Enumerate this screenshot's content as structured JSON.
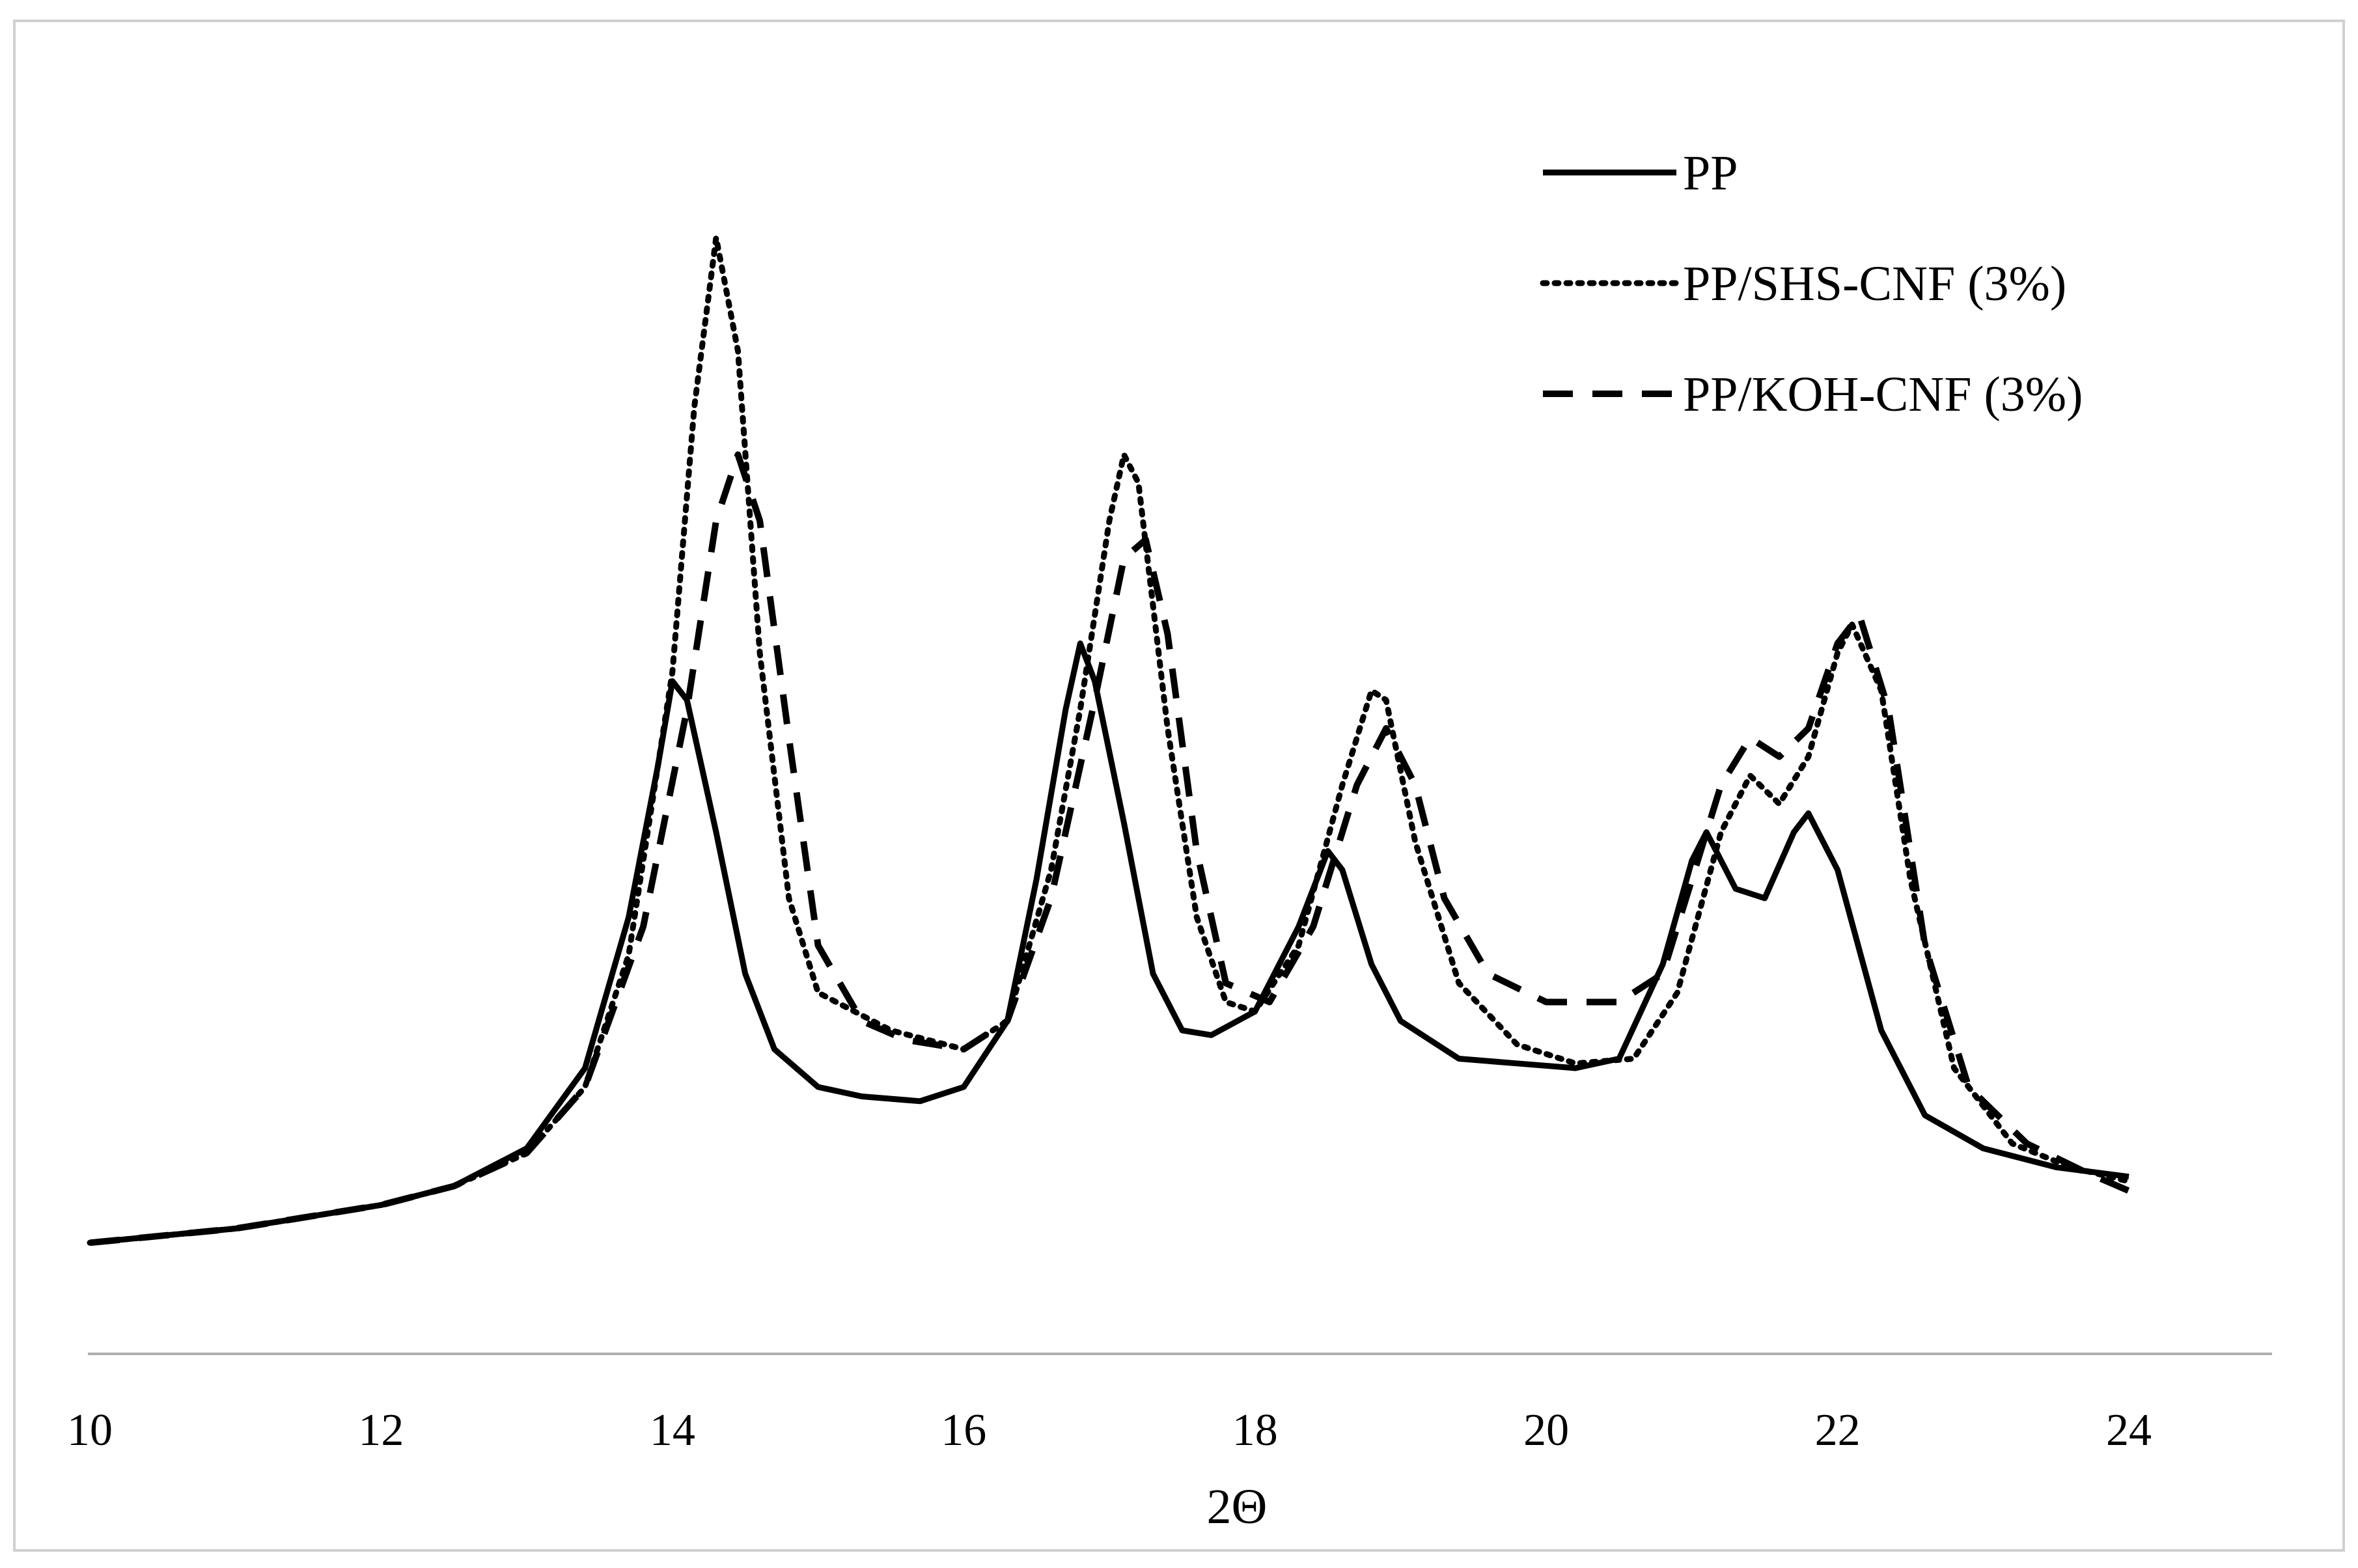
{
  "chart_data": {
    "type": "line",
    "title": "",
    "xlabel": "2Θ",
    "ylabel": "",
    "xlim": [
      10,
      24
    ],
    "ylim": [
      0,
      115
    ],
    "x_ticks": [
      "10",
      "12",
      "14",
      "16",
      "18",
      "20",
      "22",
      "24"
    ],
    "grid": false,
    "legend_position": "top-right",
    "series": [
      {
        "name": "PP",
        "style": "solid",
        "color": "#000000",
        "points": [
          [
            10.0,
            3.5
          ],
          [
            11.0,
            5.0
          ],
          [
            12.0,
            7.5
          ],
          [
            12.5,
            9.5
          ],
          [
            13.0,
            13.5
          ],
          [
            13.4,
            22
          ],
          [
            13.7,
            38
          ],
          [
            13.9,
            54
          ],
          [
            14.0,
            63
          ],
          [
            14.1,
            61
          ],
          [
            14.3,
            47
          ],
          [
            14.5,
            32
          ],
          [
            14.7,
            24
          ],
          [
            15.0,
            20
          ],
          [
            15.3,
            19
          ],
          [
            15.7,
            18.5
          ],
          [
            16.0,
            20
          ],
          [
            16.3,
            27
          ],
          [
            16.5,
            42
          ],
          [
            16.7,
            60
          ],
          [
            16.8,
            67
          ],
          [
            16.9,
            63
          ],
          [
            17.1,
            48
          ],
          [
            17.3,
            32
          ],
          [
            17.5,
            26
          ],
          [
            17.7,
            25.5
          ],
          [
            18.0,
            28
          ],
          [
            18.3,
            37
          ],
          [
            18.5,
            45
          ],
          [
            18.6,
            43
          ],
          [
            18.8,
            33
          ],
          [
            19.0,
            27
          ],
          [
            19.4,
            23
          ],
          [
            19.8,
            22.5
          ],
          [
            20.2,
            22
          ],
          [
            20.5,
            23
          ],
          [
            20.8,
            33
          ],
          [
            21.0,
            44
          ],
          [
            21.1,
            47
          ],
          [
            21.3,
            41
          ],
          [
            21.5,
            40
          ],
          [
            21.7,
            47
          ],
          [
            21.8,
            49
          ],
          [
            22.0,
            43
          ],
          [
            22.3,
            26
          ],
          [
            22.6,
            17
          ],
          [
            23.0,
            13.5
          ],
          [
            23.5,
            11.5
          ],
          [
            24.0,
            10.5
          ]
        ]
      },
      {
        "name": "PP/SHS-CNF (3%)",
        "style": "dotted",
        "color": "#000000",
        "points": [
          [
            10.0,
            3.5
          ],
          [
            11.0,
            5.0
          ],
          [
            12.0,
            7.5
          ],
          [
            12.5,
            9.5
          ],
          [
            13.0,
            13
          ],
          [
            13.4,
            20
          ],
          [
            13.7,
            34
          ],
          [
            14.0,
            64
          ],
          [
            14.15,
            92
          ],
          [
            14.3,
            110
          ],
          [
            14.45,
            98
          ],
          [
            14.6,
            66
          ],
          [
            14.8,
            40
          ],
          [
            15.0,
            30
          ],
          [
            15.5,
            26
          ],
          [
            16.0,
            24
          ],
          [
            16.3,
            27
          ],
          [
            16.6,
            43
          ],
          [
            16.8,
            60
          ],
          [
            17.0,
            80
          ],
          [
            17.1,
            87
          ],
          [
            17.2,
            84
          ],
          [
            17.4,
            58
          ],
          [
            17.6,
            38
          ],
          [
            17.8,
            29
          ],
          [
            18.0,
            28
          ],
          [
            18.3,
            35
          ],
          [
            18.6,
            52
          ],
          [
            18.8,
            62
          ],
          [
            18.9,
            61
          ],
          [
            19.1,
            46
          ],
          [
            19.4,
            31
          ],
          [
            19.8,
            24.5
          ],
          [
            20.2,
            22.5
          ],
          [
            20.6,
            23
          ],
          [
            20.9,
            30
          ],
          [
            21.2,
            47
          ],
          [
            21.4,
            53
          ],
          [
            21.6,
            50
          ],
          [
            21.8,
            55
          ],
          [
            22.0,
            66
          ],
          [
            22.1,
            69
          ],
          [
            22.3,
            62
          ],
          [
            22.5,
            42
          ],
          [
            22.8,
            22
          ],
          [
            23.2,
            14
          ],
          [
            23.6,
            11.5
          ],
          [
            24.0,
            10
          ]
        ]
      },
      {
        "name": "PP/KOH-CNF (3%)",
        "style": "dashed",
        "color": "#000000",
        "points": [
          [
            10.0,
            3.5
          ],
          [
            11.0,
            5.0
          ],
          [
            12.0,
            7.5
          ],
          [
            12.5,
            9.5
          ],
          [
            13.0,
            13
          ],
          [
            13.4,
            20
          ],
          [
            13.8,
            37
          ],
          [
            14.1,
            60
          ],
          [
            14.3,
            80
          ],
          [
            14.45,
            87
          ],
          [
            14.6,
            80
          ],
          [
            14.8,
            57
          ],
          [
            15.0,
            35
          ],
          [
            15.3,
            27
          ],
          [
            15.6,
            25
          ],
          [
            16.0,
            24
          ],
          [
            16.3,
            27
          ],
          [
            16.6,
            40
          ],
          [
            16.9,
            61
          ],
          [
            17.1,
            76
          ],
          [
            17.25,
            78
          ],
          [
            17.4,
            68
          ],
          [
            17.6,
            45
          ],
          [
            17.8,
            31
          ],
          [
            18.1,
            29
          ],
          [
            18.4,
            37
          ],
          [
            18.7,
            52
          ],
          [
            18.9,
            58
          ],
          [
            19.1,
            52
          ],
          [
            19.3,
            40
          ],
          [
            19.6,
            32
          ],
          [
            20.0,
            29
          ],
          [
            20.5,
            29
          ],
          [
            20.8,
            32
          ],
          [
            21.0,
            42
          ],
          [
            21.2,
            52
          ],
          [
            21.4,
            57
          ],
          [
            21.6,
            55
          ],
          [
            21.8,
            58
          ],
          [
            22.0,
            67
          ],
          [
            22.15,
            70
          ],
          [
            22.35,
            60
          ],
          [
            22.6,
            35
          ],
          [
            22.9,
            20
          ],
          [
            23.3,
            14
          ],
          [
            23.7,
            11
          ],
          [
            24.0,
            9
          ]
        ]
      }
    ]
  }
}
